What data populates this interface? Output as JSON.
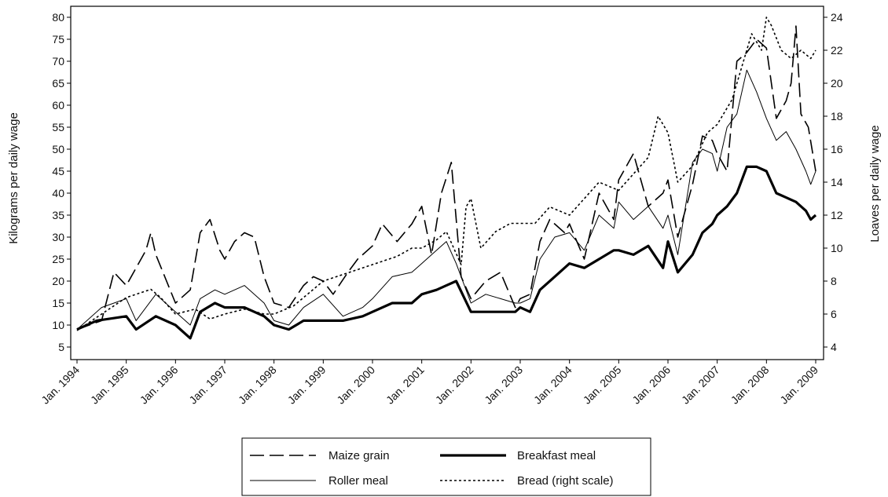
{
  "chart_data": {
    "type": "line",
    "title": "",
    "ylabel": "Kilograms per daily wage",
    "y2label": "Loaves per daily wage",
    "xlabel": "",
    "ylim": [
      5,
      80
    ],
    "y2lim": [
      4,
      24
    ],
    "yticks": [
      "5",
      "10",
      "15",
      "20",
      "25",
      "30",
      "35",
      "40",
      "45",
      "50",
      "55",
      "60",
      "65",
      "70",
      "75",
      "80"
    ],
    "y2ticks": [
      "4",
      "6",
      "8",
      "10",
      "12",
      "14",
      "16",
      "18",
      "20",
      "22",
      "24"
    ],
    "xlim": [
      1994,
      2009
    ],
    "xticks": [
      "Jan. 1994",
      "Jan. 1995",
      "Jan. 1996",
      "Jan. 1997",
      "Jan. 1998",
      "Jan. 1999",
      "Jan. 2000",
      "Jan. 2001",
      "Jan. 2002",
      "Jan. 2003",
      "Jan. 2004",
      "Jan. 2005",
      "Jan. 2006",
      "Jan. 2007",
      "Jan. 2008",
      "Jan. 2009"
    ],
    "grid": false,
    "legend_position": "bottom",
    "series": [
      {
        "name": "Maize grain",
        "axis": "left",
        "style": "longdash",
        "x": [
          1994.0,
          1994.5,
          1994.75,
          1995.0,
          1995.4,
          1995.5,
          1995.6,
          1996.0,
          1996.3,
          1996.5,
          1996.7,
          1996.9,
          1997.0,
          1997.2,
          1997.4,
          1997.6,
          1997.8,
          1998.0,
          1998.3,
          1998.6,
          1998.8,
          1999.0,
          1999.2,
          1999.5,
          1999.7,
          2000.0,
          2000.2,
          2000.5,
          2000.8,
          2001.0,
          2001.2,
          2001.4,
          2001.6,
          2001.8,
          2002.0,
          2002.3,
          2002.6,
          2002.9,
          2003.0,
          2003.2,
          2003.4,
          2003.6,
          2003.9,
          2004.0,
          2004.3,
          2004.6,
          2004.9,
          2005.0,
          2005.3,
          2005.6,
          2005.9,
          2006.0,
          2006.2,
          2006.5,
          2006.7,
          2006.9,
          2007.0,
          2007.2,
          2007.4,
          2007.6,
          2007.8,
          2008.0,
          2008.2,
          2008.4,
          2008.5,
          2008.6,
          2008.7,
          2008.85,
          2009.0
        ],
        "values": [
          9,
          11,
          22,
          19,
          27,
          31,
          26,
          15,
          18,
          31,
          34,
          27,
          25,
          29,
          31,
          30,
          21,
          15,
          14,
          19,
          21,
          20,
          17,
          22,
          25,
          28,
          33,
          29,
          33,
          37,
          26,
          40,
          47,
          21,
          16,
          20,
          22,
          14,
          16,
          17,
          29,
          34,
          31,
          33,
          25,
          40,
          34,
          43,
          49,
          37,
          40,
          43,
          30,
          42,
          53,
          52,
          49,
          45,
          70,
          72,
          75,
          73,
          57,
          61,
          65,
          78,
          58,
          55,
          45
        ]
      },
      {
        "name": "Roller meal",
        "axis": "left",
        "style": "thin",
        "x": [
          1994.0,
          1994.5,
          1995.0,
          1995.2,
          1995.6,
          1996.0,
          1996.3,
          1996.5,
          1996.8,
          1997.0,
          1997.4,
          1997.8,
          1998.0,
          1998.3,
          1998.6,
          1999.0,
          1999.4,
          1999.8,
          2000.0,
          2000.4,
          2000.8,
          2001.0,
          2001.3,
          2001.5,
          2001.7,
          2002.0,
          2002.3,
          2002.6,
          2002.9,
          2003.0,
          2003.2,
          2003.4,
          2003.7,
          2004.0,
          2004.3,
          2004.6,
          2004.9,
          2005.0,
          2005.3,
          2005.6,
          2005.9,
          2006.0,
          2006.2,
          2006.5,
          2006.7,
          2006.9,
          2007.0,
          2007.2,
          2007.4,
          2007.6,
          2007.8,
          2008.0,
          2008.2,
          2008.4,
          2008.6,
          2008.8,
          2008.9,
          2009.0
        ],
        "values": [
          9,
          14,
          16,
          11,
          17,
          13,
          10,
          16,
          18,
          17,
          19,
          15,
          11,
          10,
          14,
          17,
          12,
          14,
          16,
          21,
          22,
          24,
          27,
          29,
          24,
          15,
          17,
          16,
          15,
          15,
          16,
          25,
          30,
          31,
          27,
          35,
          32,
          38,
          34,
          37,
          32,
          35,
          26,
          47,
          50,
          49,
          45,
          55,
          58,
          68,
          63,
          57,
          52,
          54,
          50,
          45,
          42,
          45
        ]
      },
      {
        "name": "Breakfast meal",
        "axis": "left",
        "style": "thick",
        "x": [
          1994.0,
          1994.4,
          1995.0,
          1995.2,
          1995.6,
          1996.0,
          1996.3,
          1996.5,
          1996.8,
          1997.0,
          1997.4,
          1997.8,
          1998.0,
          1998.3,
          1998.6,
          1999.0,
          1999.4,
          1999.8,
          2000.0,
          2000.4,
          2000.8,
          2001.0,
          2001.3,
          2001.5,
          2001.7,
          2002.0,
          2002.3,
          2002.6,
          2002.9,
          2003.0,
          2003.2,
          2003.4,
          2003.7,
          2004.0,
          2004.3,
          2004.6,
          2004.9,
          2005.0,
          2005.3,
          2005.6,
          2005.9,
          2006.0,
          2006.2,
          2006.5,
          2006.7,
          2006.9,
          2007.0,
          2007.2,
          2007.4,
          2007.6,
          2007.8,
          2008.0,
          2008.2,
          2008.4,
          2008.6,
          2008.8,
          2008.9,
          2009.0
        ],
        "values": [
          9,
          11,
          12,
          9,
          12,
          10,
          7,
          13,
          15,
          14,
          14,
          12,
          10,
          9,
          11,
          11,
          11,
          12,
          13,
          15,
          15,
          17,
          18,
          19,
          20,
          13,
          13,
          13,
          13,
          14,
          13,
          18,
          21,
          24,
          23,
          25,
          27,
          27,
          26,
          28,
          23,
          29,
          22,
          26,
          31,
          33,
          35,
          37,
          40,
          46,
          46,
          45,
          40,
          39,
          38,
          36,
          34,
          35
        ]
      },
      {
        "name": "Bread (right scale)",
        "axis": "right",
        "style": "dotted",
        "x": [
          1994.0,
          1994.5,
          1995.0,
          1995.5,
          1995.7,
          1996.0,
          1996.4,
          1996.7,
          1997.0,
          1997.4,
          1997.8,
          1998.0,
          1998.4,
          1998.8,
          1999.0,
          1999.5,
          2000.0,
          2000.5,
          2000.8,
          2001.0,
          2001.3,
          2001.5,
          2001.8,
          2001.9,
          2002.0,
          2002.2,
          2002.5,
          2002.8,
          2003.0,
          2003.3,
          2003.6,
          2004.0,
          2004.3,
          2004.6,
          2005.0,
          2005.3,
          2005.6,
          2005.8,
          2006.0,
          2006.2,
          2006.5,
          2006.8,
          2007.0,
          2007.3,
          2007.5,
          2007.7,
          2007.9,
          2008.0,
          2008.1,
          2008.3,
          2008.5,
          2008.7,
          2008.9,
          2009.0
        ],
        "values": [
          5,
          6,
          7,
          7.5,
          7,
          6,
          6.3,
          5.7,
          6,
          6.3,
          6,
          6,
          6.5,
          7.5,
          8,
          8.5,
          9,
          9.5,
          10,
          10,
          10.5,
          11,
          9,
          12.5,
          13,
          10,
          11,
          11.5,
          11.5,
          11.5,
          12.5,
          12,
          13,
          14,
          13.5,
          14.5,
          15.5,
          18,
          17,
          14,
          15,
          17,
          17.5,
          19,
          21,
          23,
          22,
          24,
          23.5,
          22,
          21.5,
          22,
          21.5,
          22
        ]
      }
    ]
  }
}
